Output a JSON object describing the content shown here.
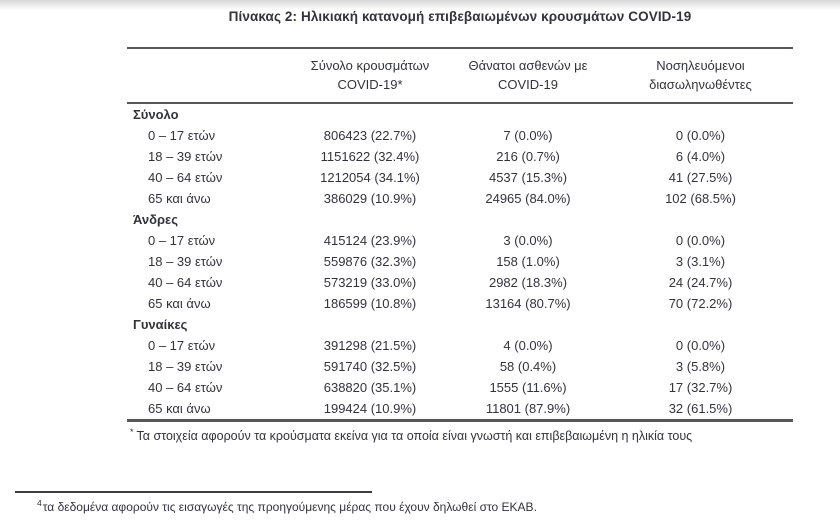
{
  "title": "Πίνακας 2: Ηλικιακή κατανομή επιβεβαιωμένων κρουσμάτων COVID-19",
  "table": {
    "columns": [
      {
        "line1": "Σύνολο κρουσμάτων",
        "line2": "COVID-19*"
      },
      {
        "line1": "Θάνατοι ασθενών με",
        "line2": "COVID-19"
      },
      {
        "line1": "Νοσηλευόμενοι",
        "line2": "διασωληνωθέντες"
      }
    ],
    "sections": [
      {
        "label": "Σύνολο",
        "rows": [
          {
            "age": "0 – 17 ετών",
            "cases": "806423 (22.7%)",
            "deaths": "7 (0.0%)",
            "intubated": "0 (0.0%)"
          },
          {
            "age": "18 – 39 ετών",
            "cases": "1151622 (32.4%)",
            "deaths": "216 (0.7%)",
            "intubated": "6 (4.0%)"
          },
          {
            "age": "40 – 64 ετών",
            "cases": "1212054 (34.1%)",
            "deaths": "4537 (15.3%)",
            "intubated": "41 (27.5%)"
          },
          {
            "age": "65 και άνω",
            "cases": "386029 (10.9%)",
            "deaths": "24965 (84.0%)",
            "intubated": "102 (68.5%)"
          }
        ]
      },
      {
        "label": "Άνδρες",
        "rows": [
          {
            "age": "0 – 17 ετών",
            "cases": "415124 (23.9%)",
            "deaths": "3 (0.0%)",
            "intubated": "0 (0.0%)"
          },
          {
            "age": "18 – 39 ετών",
            "cases": "559876 (32.3%)",
            "deaths": "158 (1.0%)",
            "intubated": "3 (3.1%)"
          },
          {
            "age": "40 – 64 ετών",
            "cases": "573219 (33.0%)",
            "deaths": "2982 (18.3%)",
            "intubated": "24 (24.7%)"
          },
          {
            "age": "65 και άνω",
            "cases": "186599 (10.8%)",
            "deaths": "13164 (80.7%)",
            "intubated": "70 (72.2%)"
          }
        ]
      },
      {
        "label": "Γυναίκες",
        "rows": [
          {
            "age": "0 – 17 ετών",
            "cases": "391298 (21.5%)",
            "deaths": "4 (0.0%)",
            "intubated": "0 (0.0%)"
          },
          {
            "age": "18 – 39 ετών",
            "cases": "591740 (32.5%)",
            "deaths": "58 (0.4%)",
            "intubated": "3 (5.8%)"
          },
          {
            "age": "40 – 64 ετών",
            "cases": "638820 (35.1%)",
            "deaths": "1555 (11.6%)",
            "intubated": "17 (32.7%)"
          },
          {
            "age": "65 και άνω",
            "cases": "199424 (10.9%)",
            "deaths": "11801 (87.9%)",
            "intubated": "32 (61.5%)"
          }
        ]
      }
    ],
    "footnote_marker": "*",
    "footnote_text": "Τα στοιχεία αφορούν τα κρούσματα εκείνα για τα οποία είναι γνωστή και επιβεβαιωμένη η ηλικία τους"
  },
  "page_footnote": {
    "marker": "4",
    "text": "τα δεδομένα αφορούν τις εισαγωγές της προηγούμενης μέρας που έχουν δηλωθεί στο ΕΚΑΒ."
  },
  "colors": {
    "text": "#33333c",
    "rule": "#56565c"
  }
}
